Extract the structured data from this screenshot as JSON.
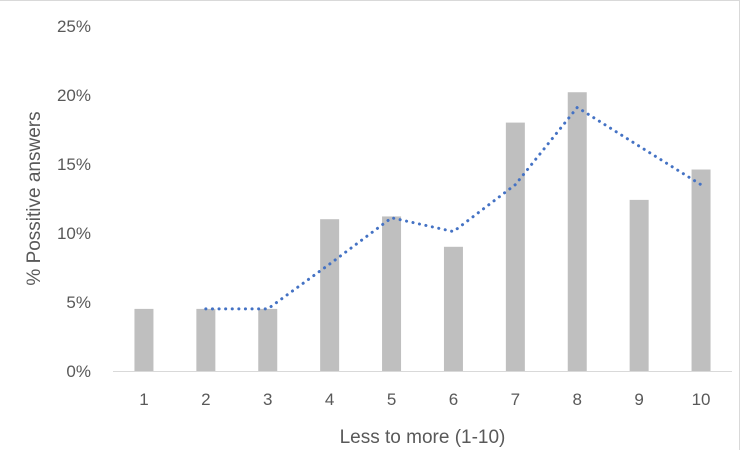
{
  "chart_data": {
    "type": "bar",
    "title": "",
    "xlabel": "Less to more (1-10)",
    "ylabel": "% Possitive answers",
    "categories": [
      "1",
      "2",
      "3",
      "4",
      "5",
      "6",
      "7",
      "8",
      "9",
      "10"
    ],
    "series": [
      {
        "type": "bar",
        "values": [
          4.5,
          4.5,
          4.5,
          11.0,
          11.2,
          9.0,
          18.0,
          20.2,
          12.4,
          14.6
        ],
        "color": "#bfbfbf"
      },
      {
        "type": "line",
        "line_style": "dotted",
        "values": [
          null,
          4.5,
          4.5,
          7.75,
          11.1,
          10.1,
          13.5,
          19.1,
          16.3,
          13.5
        ],
        "color": "#4472c4"
      }
    ],
    "ylim": [
      0,
      25
    ],
    "yticks": [
      "0%",
      "5%",
      "10%",
      "15%",
      "20%",
      "25%"
    ],
    "grid": false,
    "legend": "none"
  }
}
